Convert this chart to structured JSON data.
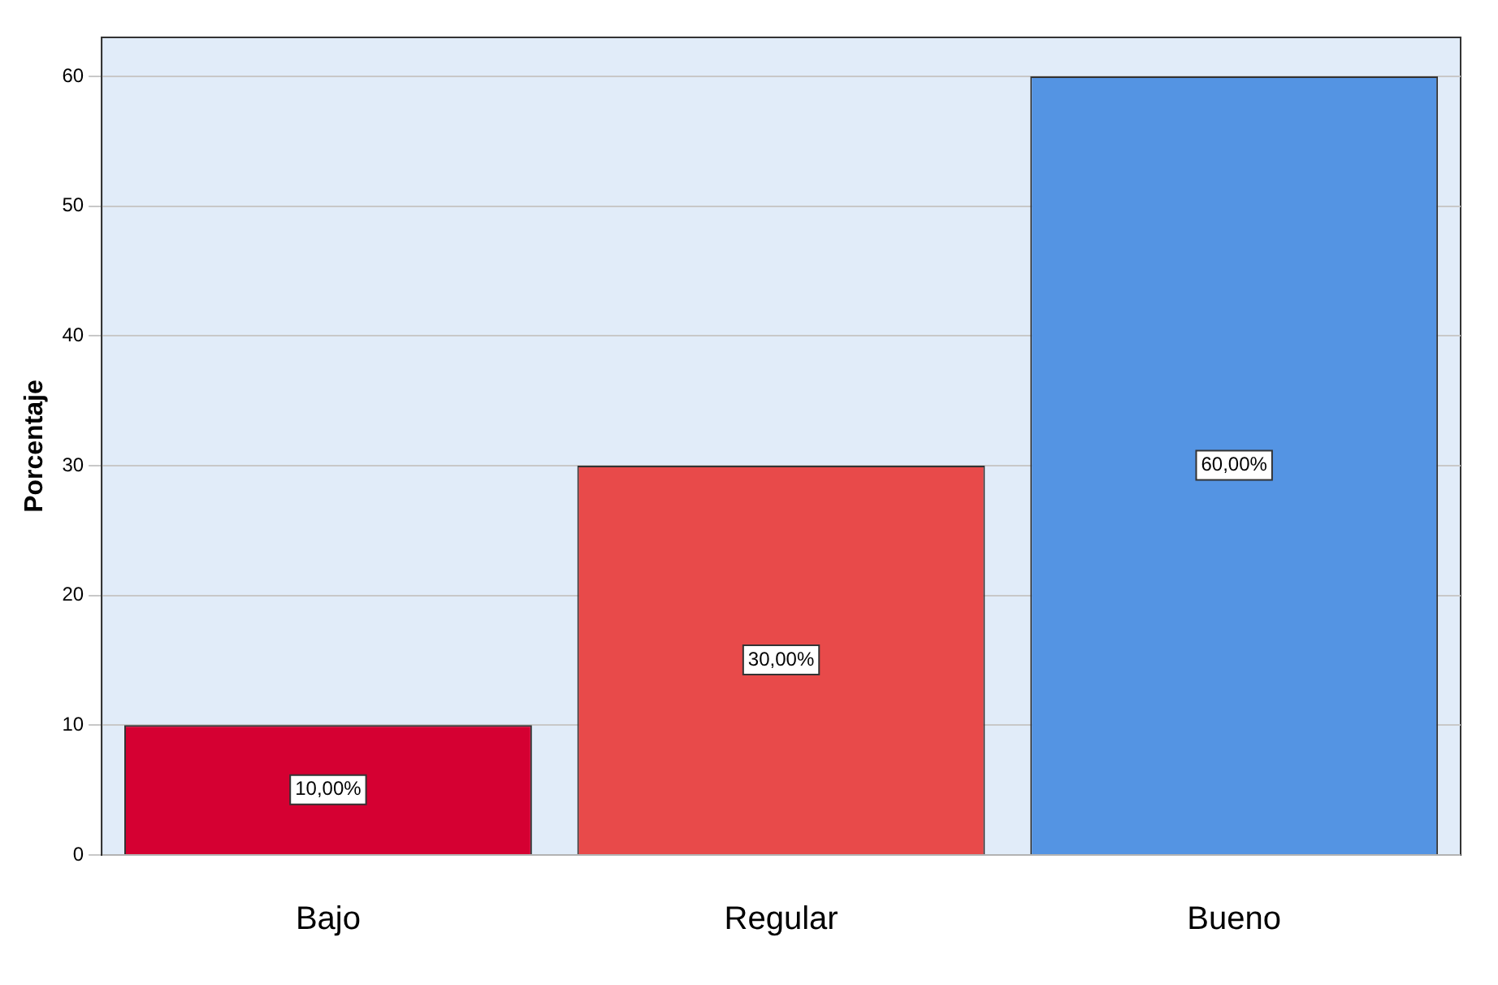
{
  "chart_data": {
    "type": "bar",
    "ylabel": "Porcentaje",
    "categories": [
      "Bajo",
      "Regular",
      "Bueno"
    ],
    "values": [
      10,
      30,
      60
    ],
    "colors": [
      "#d50032",
      "#e84a4a",
      "#5494e3"
    ],
    "value_labels": [
      "10,00%",
      "30,00%",
      "60,00%"
    ],
    "ylim": [
      0,
      63
    ],
    "yticks": [
      0,
      10,
      20,
      30,
      40,
      50,
      60
    ],
    "grid": "y"
  }
}
